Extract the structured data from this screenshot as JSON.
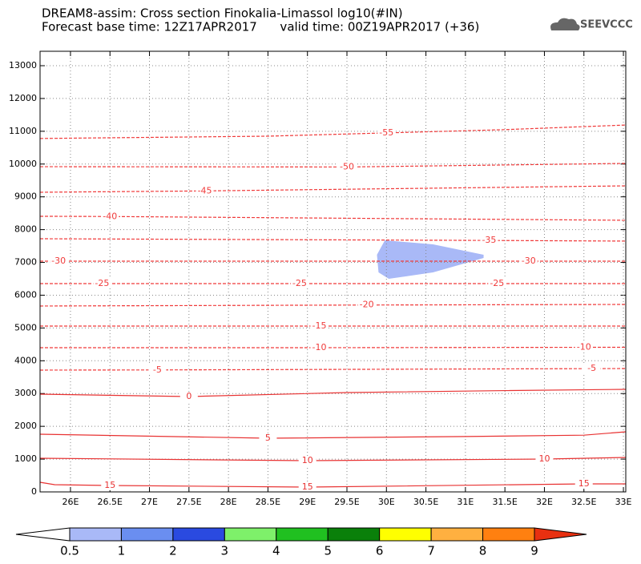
{
  "chart_data": {
    "type": "contour",
    "title": "DREAM8-assim: Cross section Finokalia-Limassol log10(#IN)",
    "subtitle": "Forecast base time: 12Z17APR2017      valid time: 00Z19APR2017 (+36)",
    "logo": "SEEVCCC",
    "xlim": [
      25.615,
      33.03
    ],
    "ylim": [
      0,
      13440
    ],
    "xticks": [
      {
        "value": 26,
        "label": "26E"
      },
      {
        "value": 26.5,
        "label": "26.5E"
      },
      {
        "value": 27,
        "label": "27E"
      },
      {
        "value": 27.5,
        "label": "27.5E"
      },
      {
        "value": 28,
        "label": "28E"
      },
      {
        "value": 28.5,
        "label": "28.5E"
      },
      {
        "value": 29,
        "label": "29E"
      },
      {
        "value": 29.5,
        "label": "29.5E"
      },
      {
        "value": 30,
        "label": "30E"
      },
      {
        "value": 30.5,
        "label": "30.5E"
      },
      {
        "value": 31,
        "label": "31E"
      },
      {
        "value": 31.5,
        "label": "31.5E"
      },
      {
        "value": 32,
        "label": "32E"
      },
      {
        "value": 32.5,
        "label": "32.5E"
      },
      {
        "value": 33,
        "label": "33E"
      }
    ],
    "yticks": [
      0,
      1000,
      2000,
      3000,
      4000,
      5000,
      6000,
      7000,
      8000,
      9000,
      10000,
      11000,
      12000,
      13000
    ],
    "grid": true,
    "shaded": {
      "color": "#a9b9f7",
      "x": [
        29.98,
        29.88,
        29.9,
        30.03,
        30.59,
        31.23,
        31.23,
        30.59
      ],
      "values": [
        7674,
        7234,
        6696,
        6500,
        6695,
        7136,
        7234,
        7551
      ]
    },
    "contours": [
      {
        "level": -55,
        "color": "#f03a3a",
        "dashed": true,
        "x": [
          25.615,
          28.5,
          30,
          31.5,
          33.03
        ],
        "values": [
          10780,
          10850,
          10950,
          11050,
          11190
        ]
      },
      {
        "level": -50,
        "color": "#f03a3a",
        "dashed": true,
        "x": [
          25.615,
          29.5,
          33.03
        ],
        "values": [
          9920,
          9910,
          10020
        ]
      },
      {
        "level": -45,
        "color": "#f03a3a",
        "dashed": true,
        "x": [
          25.615,
          27.7,
          33.03
        ],
        "values": [
          9140,
          9180,
          9335
        ]
      },
      {
        "level": -40,
        "color": "#f03a3a",
        "dashed": true,
        "x": [
          25.615,
          26.5,
          33.03
        ],
        "values": [
          8407,
          8400,
          8285
        ]
      },
      {
        "level": -35,
        "color": "#f03a3a",
        "dashed": true,
        "x": [
          25.615,
          31.3,
          33.03
        ],
        "values": [
          7722,
          7670,
          7650
        ]
      },
      {
        "level": -30,
        "color": "#f03a3a",
        "dashed": true,
        "x": [
          25.615,
          25.85,
          31.8,
          33.03
        ],
        "values": [
          7038,
          7038,
          7038,
          7038
        ]
      },
      {
        "level": -25,
        "color": "#f03a3a",
        "dashed": true,
        "x": [
          25.615,
          26.4,
          28.9,
          31.4,
          33.03
        ],
        "values": [
          6354,
          6354,
          6354,
          6354,
          6354
        ]
      },
      {
        "level": -20,
        "color": "#f03a3a",
        "dashed": true,
        "x": [
          25.615,
          29.75,
          33.03
        ],
        "values": [
          5670,
          5700,
          5718
        ]
      },
      {
        "level": -15,
        "color": "#f03a3a",
        "dashed": true,
        "x": [
          25.615,
          29.15,
          33.03
        ],
        "values": [
          5058,
          5058,
          5058
        ]
      },
      {
        "level": -10,
        "color": "#f03a3a",
        "dashed": true,
        "x": [
          25.615,
          29.15,
          32.5,
          33.03
        ],
        "values": [
          4399,
          4399,
          4410,
          4410
        ]
      },
      {
        "level": -5,
        "color": "#f03a3a",
        "dashed": true,
        "x": [
          25.615,
          27.1,
          32.6,
          33.03
        ],
        "values": [
          3715,
          3720,
          3760,
          3763
        ]
      },
      {
        "level": 0,
        "color": "#e83232",
        "dashed": false,
        "x": [
          25.615,
          27.5,
          29.5,
          31.5,
          33.03
        ],
        "values": [
          2981,
          2908,
          3030,
          3090,
          3128
        ]
      },
      {
        "level": 5,
        "color": "#e83232",
        "dashed": false,
        "x": [
          25.615,
          28.5,
          31,
          32.5,
          33.03
        ],
        "values": [
          1760,
          1637,
          1690,
          1730,
          1833
        ]
      },
      {
        "level": 10,
        "color": "#e83232",
        "dashed": false,
        "x": [
          25.615,
          29,
          32,
          33.03
        ],
        "values": [
          1026,
          953,
          1002,
          1051
        ]
      },
      {
        "level": 15,
        "color": "#e83232",
        "dashed": false,
        "x": [
          25.615,
          25.8,
          26.5,
          29,
          32.5,
          33.03
        ],
        "values": [
          293,
          220,
          195,
          147,
          244,
          244
        ]
      }
    ],
    "contour_labels": [
      [
        2
      ],
      [
        1
      ],
      [
        1
      ],
      [
        1
      ],
      [
        1
      ],
      [
        1,
        2
      ],
      [
        1,
        2,
        3
      ],
      [
        1
      ],
      [
        1
      ],
      [
        1,
        2
      ],
      [
        1,
        2
      ],
      [
        1
      ],
      [
        1
      ],
      [
        1,
        2
      ],
      [
        2,
        3,
        4
      ]
    ],
    "colorbar": {
      "levels": [
        0.5,
        1,
        2,
        3,
        4,
        5,
        6,
        7,
        8,
        9
      ],
      "colors": [
        "#ffffff",
        "#a9b9f7",
        "#6a8ef0",
        "#2a4ae0",
        "#7ef06a",
        "#20c020",
        "#0a800a",
        "#ffff00",
        "#ffb040",
        "#ff8010",
        "#e83010"
      ]
    }
  }
}
